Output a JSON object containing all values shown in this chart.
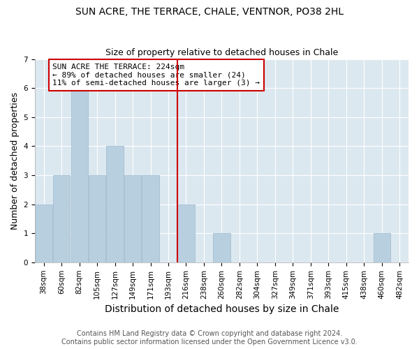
{
  "title": "SUN ACRE, THE TERRACE, CHALE, VENTNOR, PO38 2HL",
  "subtitle": "Size of property relative to detached houses in Chale",
  "xlabel": "Distribution of detached houses by size in Chale",
  "ylabel": "Number of detached properties",
  "footer": "Contains HM Land Registry data © Crown copyright and database right 2024.\nContains public sector information licensed under the Open Government Licence v3.0.",
  "bin_labels": [
    "38sqm",
    "60sqm",
    "82sqm",
    "105sqm",
    "127sqm",
    "149sqm",
    "171sqm",
    "193sqm",
    "216sqm",
    "238sqm",
    "260sqm",
    "282sqm",
    "304sqm",
    "327sqm",
    "349sqm",
    "371sqm",
    "393sqm",
    "415sqm",
    "438sqm",
    "460sqm",
    "482sqm"
  ],
  "bar_values": [
    2,
    3,
    6,
    3,
    4,
    3,
    3,
    0,
    2,
    0,
    1,
    0,
    0,
    0,
    0,
    0,
    0,
    0,
    0,
    1,
    0
  ],
  "subject_bin_index": 8,
  "subject_label_line1": "SUN ACRE THE TERRACE: 224sqm",
  "subject_label_line2": "← 89% of detached houses are smaller (24)",
  "subject_label_line3": "11% of semi-detached houses are larger (3) →",
  "bar_color": "#b8cfe0",
  "bar_edge_color": "#9ab8cc",
  "subject_line_color": "#cc0000",
  "annotation_box_edge_color": "#cc0000",
  "plot_bg_color": "#dce8f0",
  "fig_bg_color": "#ffffff",
  "grid_color": "#ffffff",
  "ylim": [
    0,
    7
  ],
  "yticks": [
    0,
    1,
    2,
    3,
    4,
    5,
    6,
    7
  ],
  "title_fontsize": 10,
  "subtitle_fontsize": 9,
  "xlabel_fontsize": 10,
  "ylabel_fontsize": 9,
  "tick_fontsize": 7.5,
  "annotation_fontsize": 8,
  "footer_fontsize": 7
}
